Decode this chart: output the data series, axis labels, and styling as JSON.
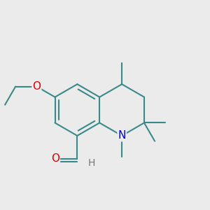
{
  "background_color": "#ebebeb",
  "bond_color": "#3a8a8a",
  "bond_width": 1.5,
  "atom_colors": {
    "O": "#dd0000",
    "N": "#0000cc",
    "H": "#777777",
    "C": "#3a8a8a"
  },
  "font_size_atoms": 11,
  "font_size_h": 10,
  "figure_size": [
    3.0,
    3.0
  ],
  "dpi": 100
}
